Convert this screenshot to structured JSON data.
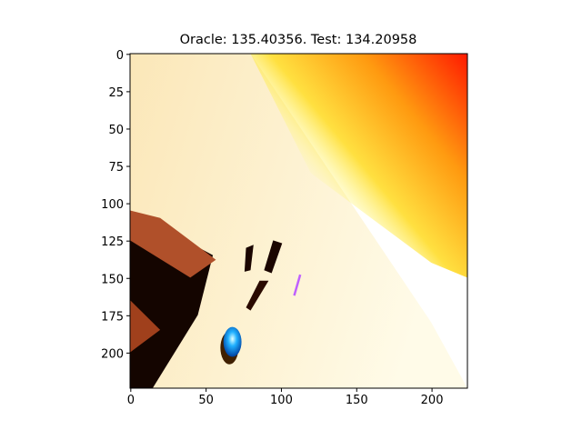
{
  "chart_data": {
    "type": "image",
    "title": "Oracle: 135.40356. Test: 134.20958",
    "xlim": [
      -0.5,
      223.5
    ],
    "ylim": [
      223.5,
      -0.5
    ],
    "xticks": [
      0,
      50,
      100,
      150,
      200
    ],
    "yticks": [
      0,
      25,
      50,
      75,
      100,
      125,
      150,
      175,
      200
    ]
  }
}
